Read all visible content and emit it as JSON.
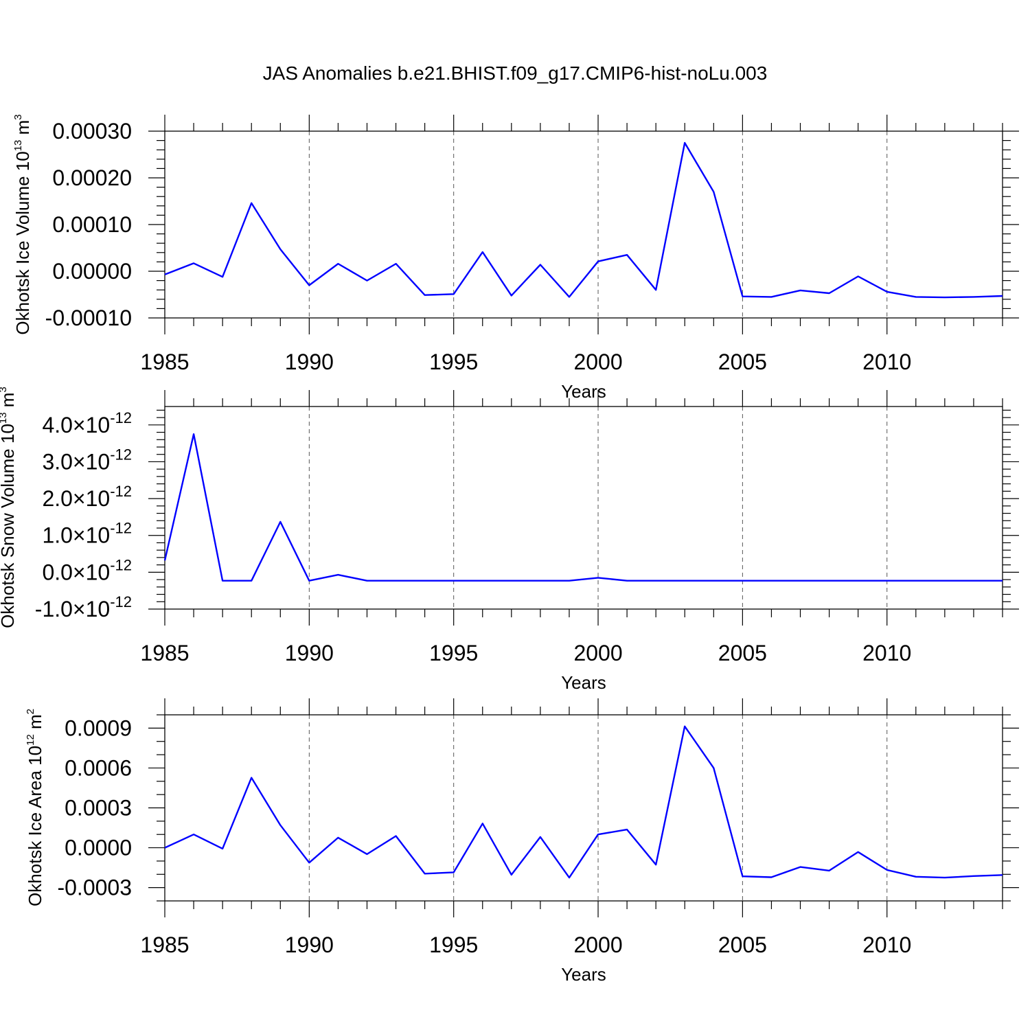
{
  "title": "JAS Anomalies b.e21.BHIST.f09_g17.CMIP6-hist-noLu.003",
  "colors": {
    "line": "#0000ff",
    "grid": "#555555",
    "axis": "#000000"
  },
  "chart_data": [
    {
      "type": "line",
      "ylabel": {
        "text": "Okhotsk Ice Volume 10",
        "sup1": "13",
        "unit": " m",
        "sup2": "3"
      },
      "xlabel": "Years",
      "xlim": [
        1985,
        2014
      ],
      "ylim": [
        -0.0001,
        0.0003
      ],
      "xticks": [
        1985,
        1990,
        1995,
        2000,
        2005,
        2010
      ],
      "xtick_labels": [
        "1985",
        "1990",
        "1995",
        "2000",
        "2005",
        "2010"
      ],
      "yticks": [
        -0.0001,
        0.0,
        0.0001,
        0.0002,
        0.0003
      ],
      "ytick_labels": [
        "-0.00010",
        "0.00000",
        "0.00010",
        "0.00020",
        "0.00030"
      ],
      "yminor_step": 2e-05,
      "x": [
        1985,
        1986,
        1987,
        1988,
        1989,
        1990,
        1991,
        1992,
        1993,
        1994,
        1995,
        1996,
        1997,
        1998,
        1999,
        2000,
        2001,
        2002,
        2003,
        2004,
        2005,
        2006,
        2007,
        2008,
        2009,
        2010,
        2011,
        2012,
        2013,
        2014
      ],
      "values": [
        -7e-06,
        1.7e-05,
        -1.2e-05,
        0.000146,
        4.7e-05,
        -3e-05,
        1.6e-05,
        -2e-05,
        1.6e-05,
        -5.1e-05,
        -4.9e-05,
        4.1e-05,
        -5.2e-05,
        1.4e-05,
        -5.5e-05,
        2.1e-05,
        3.5e-05,
        -4e-05,
        0.000275,
        0.00017,
        -5.4e-05,
        -5.5e-05,
        -4.1e-05,
        -4.7e-05,
        -1.1e-05,
        -4.4e-05,
        -5.5e-05,
        -5.6e-05,
        -5.5e-05,
        -5.3e-05
      ]
    },
    {
      "type": "line",
      "ylabel": {
        "text": "Okhotsk Snow Volume 10",
        "sup1": "13",
        "unit": " m",
        "sup2": "3"
      },
      "xlabel": "Years",
      "xlim": [
        1985,
        2014
      ],
      "ylim": [
        -1e-12,
        4.5e-12
      ],
      "xticks": [
        1985,
        1990,
        1995,
        2000,
        2005,
        2010
      ],
      "xtick_labels": [
        "1985",
        "1990",
        "1995",
        "2000",
        "2005",
        "2010"
      ],
      "yticks": [
        -1e-12,
        0.0,
        1e-12,
        2e-12,
        3e-12,
        4e-12
      ],
      "ytick_labels": [
        {
          "mant": "-1.0",
          "exp": "-12"
        },
        {
          "mant": "0.0",
          "exp": "-12"
        },
        {
          "mant": "1.0",
          "exp": "-12"
        },
        {
          "mant": "2.0",
          "exp": "-12"
        },
        {
          "mant": "3.0",
          "exp": "-12"
        },
        {
          "mant": "4.0",
          "exp": "-12"
        }
      ],
      "ytick_sep": "×10",
      "yminor_step": 2e-13,
      "x": [
        1985,
        1986,
        1987,
        1988,
        1989,
        1990,
        1991,
        1992,
        1993,
        1994,
        1995,
        1996,
        1997,
        1998,
        1999,
        2000,
        2001,
        2002,
        2003,
        2004,
        2005,
        2006,
        2007,
        2008,
        2009,
        2010,
        2011,
        2012,
        2013,
        2014
      ],
      "values": [
        3.2e-13,
        3.75e-12,
        -2.3e-13,
        -2.3e-13,
        1.37e-12,
        -2.3e-13,
        -7e-14,
        -2.3e-13,
        -2.3e-13,
        -2.3e-13,
        -2.3e-13,
        -2.3e-13,
        -2.3e-13,
        -2.3e-13,
        -2.3e-13,
        -1.5e-13,
        -2.3e-13,
        -2.3e-13,
        -2.3e-13,
        -2.3e-13,
        -2.3e-13,
        -2.3e-13,
        -2.3e-13,
        -2.3e-13,
        -2.3e-13,
        -2.3e-13,
        -2.3e-13,
        -2.3e-13,
        -2.3e-13,
        -2.3e-13
      ]
    },
    {
      "type": "line",
      "ylabel": {
        "text": "Okhotsk Ice Area 10",
        "sup1": "12",
        "unit": " m",
        "sup2": "2"
      },
      "xlabel": "Years",
      "xlim": [
        1985,
        2014
      ],
      "ylim": [
        -0.0004,
        0.001
      ],
      "xticks": [
        1985,
        1990,
        1995,
        2000,
        2005,
        2010
      ],
      "xtick_labels": [
        "1985",
        "1990",
        "1995",
        "2000",
        "2005",
        "2010"
      ],
      "yticks": [
        -0.0003,
        0.0,
        0.0003,
        0.0006,
        0.0009
      ],
      "ytick_labels": [
        "-0.0003",
        "0.0000",
        "0.0003",
        "0.0006",
        "0.0009"
      ],
      "yminor_step": 0.0001,
      "x": [
        1985,
        1986,
        1987,
        1988,
        1989,
        1990,
        1991,
        1992,
        1993,
        1994,
        1995,
        1996,
        1997,
        1998,
        1999,
        2000,
        2001,
        2002,
        2003,
        2004,
        2005,
        2006,
        2007,
        2008,
        2009,
        2010,
        2011,
        2012,
        2013,
        2014
      ],
      "values": [
        0.0,
        0.0001,
        -7e-06,
        0.000527,
        0.00017,
        -0.000112,
        7.6e-05,
        -4.8e-05,
        8.8e-05,
        -0.000195,
        -0.000185,
        0.000182,
        -0.000203,
        8.1e-05,
        -0.000225,
        0.0001,
        0.000137,
        -0.000127,
        0.000913,
        0.0006,
        -0.000215,
        -0.000222,
        -0.000145,
        -0.000172,
        -3.2e-05,
        -0.000167,
        -0.000218,
        -0.000225,
        -0.000213,
        -0.000205
      ]
    }
  ]
}
